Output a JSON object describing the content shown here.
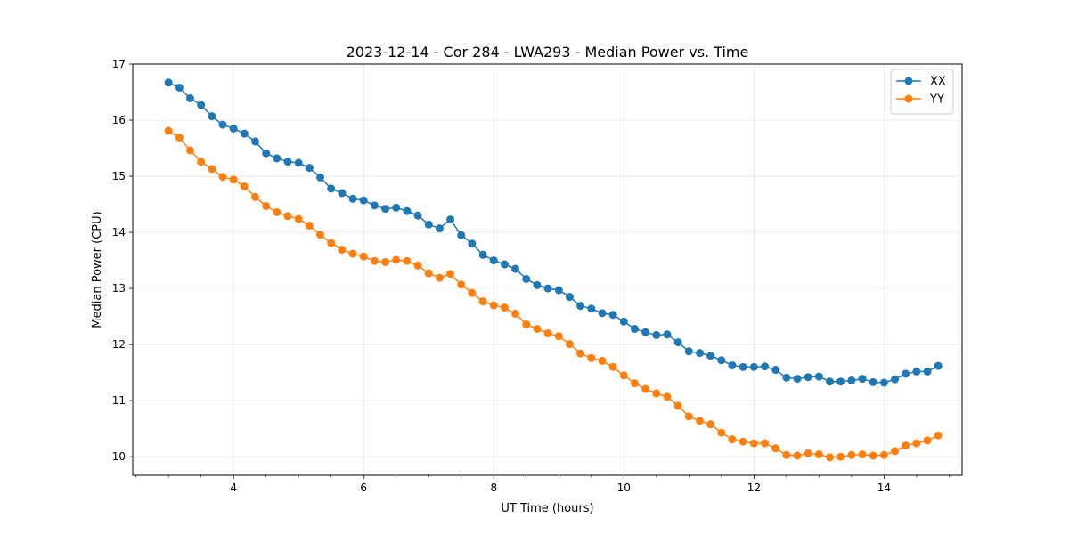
{
  "chart_data": {
    "type": "line",
    "title": "2023-12-14 - Cor 284 - LWA293 - Median Power vs. Time",
    "xlabel": "UT Time (hours)",
    "ylabel": "Median Power (CPU)",
    "xlim": [
      2.45,
      15.2
    ],
    "ylim": [
      9.67,
      17.0
    ],
    "xticks": [
      4,
      6,
      8,
      10,
      12,
      14
    ],
    "xticklabels": [
      "4",
      "6",
      "8",
      "10",
      "12",
      "14"
    ],
    "xminor_step": 0.5,
    "yticks": [
      10,
      11,
      12,
      13,
      14,
      15,
      16,
      17
    ],
    "yticklabels": [
      "10",
      "11",
      "12",
      "13",
      "14",
      "15",
      "16",
      "17"
    ],
    "grid": true,
    "legend": "top-right",
    "x": [
      3.0,
      3.167,
      3.333,
      3.5,
      3.667,
      3.833,
      4.0,
      4.167,
      4.333,
      4.5,
      4.667,
      4.833,
      5.0,
      5.167,
      5.333,
      5.5,
      5.667,
      5.833,
      6.0,
      6.167,
      6.333,
      6.5,
      6.667,
      6.833,
      7.0,
      7.167,
      7.333,
      7.5,
      7.667,
      7.833,
      8.0,
      8.167,
      8.333,
      8.5,
      8.667,
      8.833,
      9.0,
      9.167,
      9.333,
      9.5,
      9.667,
      9.833,
      10.0,
      10.167,
      10.333,
      10.5,
      10.667,
      10.833,
      11.0,
      11.167,
      11.333,
      11.5,
      11.667,
      11.833,
      12.0,
      12.167,
      12.333,
      12.5,
      12.667,
      12.833,
      13.0,
      13.167,
      13.333,
      13.5,
      13.667,
      13.833,
      14.0,
      14.167,
      14.333,
      14.5,
      14.667,
      14.833
    ],
    "series": [
      {
        "name": "XX",
        "color": "#1f77b4",
        "values": [
          16.67,
          16.58,
          16.39,
          16.27,
          16.07,
          15.92,
          15.85,
          15.76,
          15.62,
          15.41,
          15.32,
          15.26,
          15.24,
          15.15,
          14.98,
          14.78,
          14.7,
          14.6,
          14.57,
          14.48,
          14.42,
          14.44,
          14.38,
          14.3,
          14.14,
          14.07,
          14.23,
          13.95,
          13.8,
          13.6,
          13.5,
          13.43,
          13.35,
          13.17,
          13.06,
          13.0,
          12.97,
          12.85,
          12.69,
          12.64,
          12.56,
          12.53,
          12.41,
          12.28,
          12.22,
          12.17,
          12.18,
          12.04,
          11.88,
          11.85,
          11.8,
          11.72,
          11.63,
          11.6,
          11.6,
          11.61,
          11.55,
          11.41,
          11.39,
          11.42,
          11.43,
          11.34,
          11.34,
          11.36,
          11.39,
          11.33,
          11.32,
          11.38,
          11.48,
          11.52,
          11.52,
          11.62
        ]
      },
      {
        "name": "YY",
        "color": "#ff7f0e",
        "values": [
          15.81,
          15.69,
          15.46,
          15.26,
          15.13,
          14.99,
          14.94,
          14.82,
          14.63,
          14.47,
          14.36,
          14.29,
          14.24,
          14.12,
          13.96,
          13.81,
          13.69,
          13.62,
          13.57,
          13.49,
          13.47,
          13.51,
          13.49,
          13.41,
          13.27,
          13.19,
          13.26,
          13.07,
          12.92,
          12.77,
          12.7,
          12.66,
          12.55,
          12.36,
          12.28,
          12.2,
          12.15,
          12.01,
          11.84,
          11.76,
          11.71,
          11.6,
          11.45,
          11.31,
          11.21,
          11.13,
          11.07,
          10.91,
          10.72,
          10.64,
          10.58,
          10.43,
          10.31,
          10.27,
          10.24,
          10.24,
          10.15,
          10.03,
          10.02,
          10.06,
          10.04,
          9.99,
          10.0,
          10.03,
          10.04,
          10.02,
          10.03,
          10.1,
          10.2,
          10.24,
          10.29,
          10.38
        ]
      }
    ]
  }
}
